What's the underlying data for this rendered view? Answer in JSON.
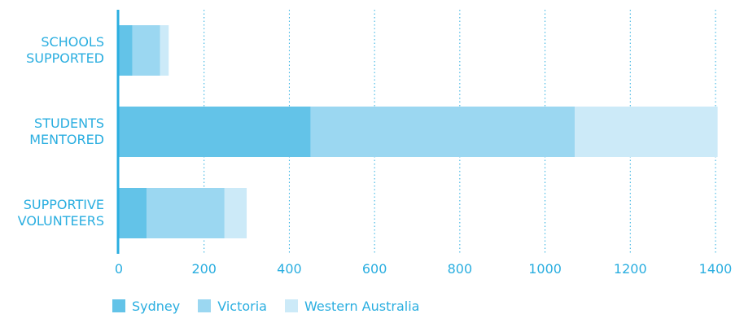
{
  "chart_data": {
    "type": "bar",
    "orientation": "horizontal",
    "stacked": true,
    "title": "",
    "xlabel": "",
    "ylabel": "",
    "categories": [
      [
        "SCHOOLS",
        "SUPPORTED"
      ],
      [
        "STUDENTS",
        "MENTORED"
      ],
      [
        "SUPPORTIVE",
        "VOLUNTEERS"
      ]
    ],
    "series": [
      {
        "name": "Sydney",
        "color": "#63c3e8",
        "values": [
          32,
          450,
          65
        ]
      },
      {
        "name": "Victoria",
        "color": "#9bd7f1",
        "values": [
          65,
          620,
          183
        ]
      },
      {
        "name": "Western Australia",
        "color": "#cceaf8",
        "values": [
          20,
          335,
          52
        ]
      }
    ],
    "xlim": [
      0,
      1400
    ],
    "xticks": [
      0,
      200,
      400,
      600,
      800,
      1000,
      1200,
      1400
    ],
    "grid": true,
    "legend_position": "bottom-left"
  },
  "colors": {
    "text": "#2aaee0",
    "axis": "#2aaee0",
    "grid": "#2aaee0"
  }
}
